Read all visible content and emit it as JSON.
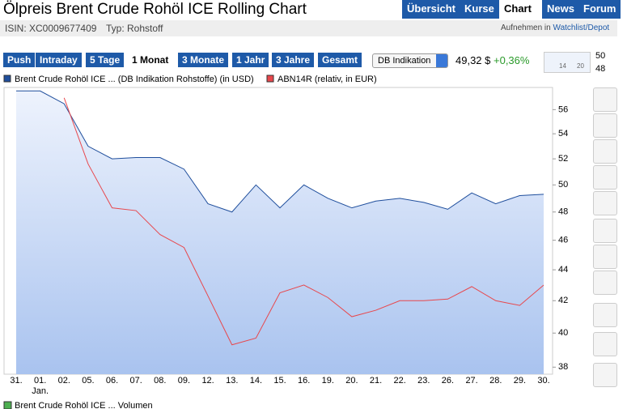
{
  "header": {
    "title": "Ölpreis Brent Crude Rohöl ICE Rolling Chart",
    "isin": "ISIN: XC0009677409",
    "typ": "Typ: Rohstoff",
    "add": "Aufnehmen in",
    "watchlist": "Watchlist/Depot"
  },
  "nav": [
    "Übersicht",
    "Kurse",
    "Chart",
    "News",
    "Forum"
  ],
  "periods": [
    "Push",
    "Intraday",
    "5 Tage",
    "1 Monat",
    "3 Monate",
    "1 Jahr",
    "3 Jahre",
    "Gesamt"
  ],
  "select": "DB Indikation",
  "quote": {
    "price": "49,32 $",
    "change": "+0,36%"
  },
  "mini": {
    "hi": "50",
    "lo": "48",
    "t1": "14",
    "t2": "20"
  },
  "volume_legend": "Brent Crude Rohöl ICE ... Volumen",
  "chart_data": {
    "type": "line",
    "log_scale": true,
    "grid": false,
    "month_label": "Jan.",
    "categories": [
      "31.",
      "01.",
      "02.",
      "05.",
      "06.",
      "07.",
      "08.",
      "09.",
      "12.",
      "13.",
      "14.",
      "15.",
      "16.",
      "19.",
      "20.",
      "21.",
      "22.",
      "23.",
      "26.",
      "27.",
      "28.",
      "29.",
      "30."
    ],
    "series": [
      {
        "name": "Brent Crude Rohöl ICE ... (DB Indikation Rohstoffe) (in USD)",
        "color": "#1f4e9c",
        "values": [
          57.6,
          57.6,
          56.5,
          53.0,
          52.0,
          52.1,
          52.1,
          51.2,
          48.6,
          48.0,
          50.0,
          48.3,
          50.0,
          49.0,
          48.3,
          48.8,
          49.0,
          48.7,
          48.2,
          49.4,
          48.6,
          49.2,
          49.3
        ]
      },
      {
        "name": "ABN14R (relativ, in EUR)",
        "color": "#e8474c",
        "values": [
          null,
          null,
          57.0,
          51.6,
          48.3,
          48.1,
          46.4,
          45.5,
          42.3,
          39.3,
          39.7,
          42.5,
          43.0,
          42.2,
          41.0,
          41.4,
          42.0,
          42.0,
          42.1,
          42.9,
          42.0,
          41.7,
          43.0
        ]
      }
    ],
    "ylim": [
      37.6,
      57.9
    ],
    "yticks": [
      38,
      40,
      42,
      44,
      46,
      48,
      50,
      52,
      54,
      56
    ]
  }
}
